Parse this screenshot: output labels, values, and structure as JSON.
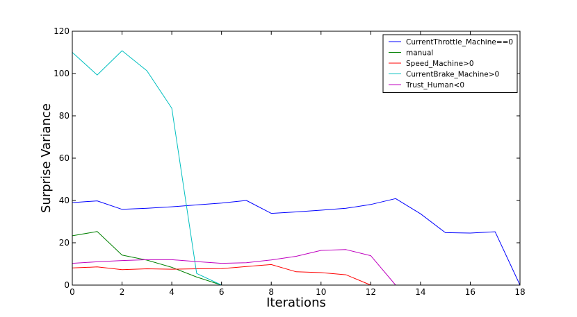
{
  "chart_data": {
    "type": "line",
    "title": "",
    "xlabel": "Iterations",
    "ylabel": "Surprise Variance",
    "xlim": [
      0,
      18
    ],
    "ylim": [
      0,
      120
    ],
    "xticks": [
      0,
      2,
      4,
      6,
      8,
      10,
      12,
      14,
      16,
      18
    ],
    "yticks": [
      0,
      20,
      40,
      60,
      80,
      100,
      120
    ],
    "grid": false,
    "legend_position": "top-right",
    "series": [
      {
        "name": "CurrentThrottle_Machine==0",
        "color": "#0000ff",
        "x": [
          0,
          1,
          2,
          3,
          4,
          5,
          6,
          7,
          8,
          9,
          10,
          11,
          12,
          13,
          14,
          15,
          16,
          17,
          18
        ],
        "y": [
          39,
          39.8,
          35.8,
          36.3,
          37,
          37.9,
          38.8,
          40,
          33.9,
          34.6,
          35.4,
          36.3,
          38.1,
          40.9,
          33.7,
          24.8,
          24.6,
          25.2,
          0
        ]
      },
      {
        "name": "manual",
        "color": "#008000",
        "x": [
          0,
          1,
          2,
          3,
          4,
          5,
          6
        ],
        "y": [
          23.3,
          25.3,
          14.2,
          11.8,
          8.4,
          3.8,
          0
        ]
      },
      {
        "name": "Speed_Machine>0",
        "color": "#ff0000",
        "x": [
          0,
          1,
          2,
          3,
          4,
          5,
          6,
          7,
          8,
          9,
          10,
          11,
          12
        ],
        "y": [
          8.1,
          8.6,
          7.3,
          7.7,
          7.5,
          7.7,
          7.8,
          8.8,
          9.7,
          6.3,
          5.9,
          4.9,
          0
        ]
      },
      {
        "name": "CurrentBrake_Machine>0",
        "color": "#00bfbf",
        "x": [
          0,
          1,
          2,
          3,
          4,
          5,
          6
        ],
        "y": [
          110,
          99.3,
          110.8,
          101.3,
          83.6,
          5.5,
          0
        ]
      },
      {
        "name": "Trust_Human<0",
        "color": "#bf00bf",
        "x": [
          0,
          1,
          2,
          3,
          4,
          5,
          6,
          7,
          8,
          9,
          10,
          11,
          12,
          13
        ],
        "y": [
          10.3,
          11,
          11.6,
          12,
          12,
          11.1,
          10.3,
          10.6,
          11.9,
          13.6,
          16.4,
          16.8,
          13.9,
          0
        ]
      }
    ]
  }
}
